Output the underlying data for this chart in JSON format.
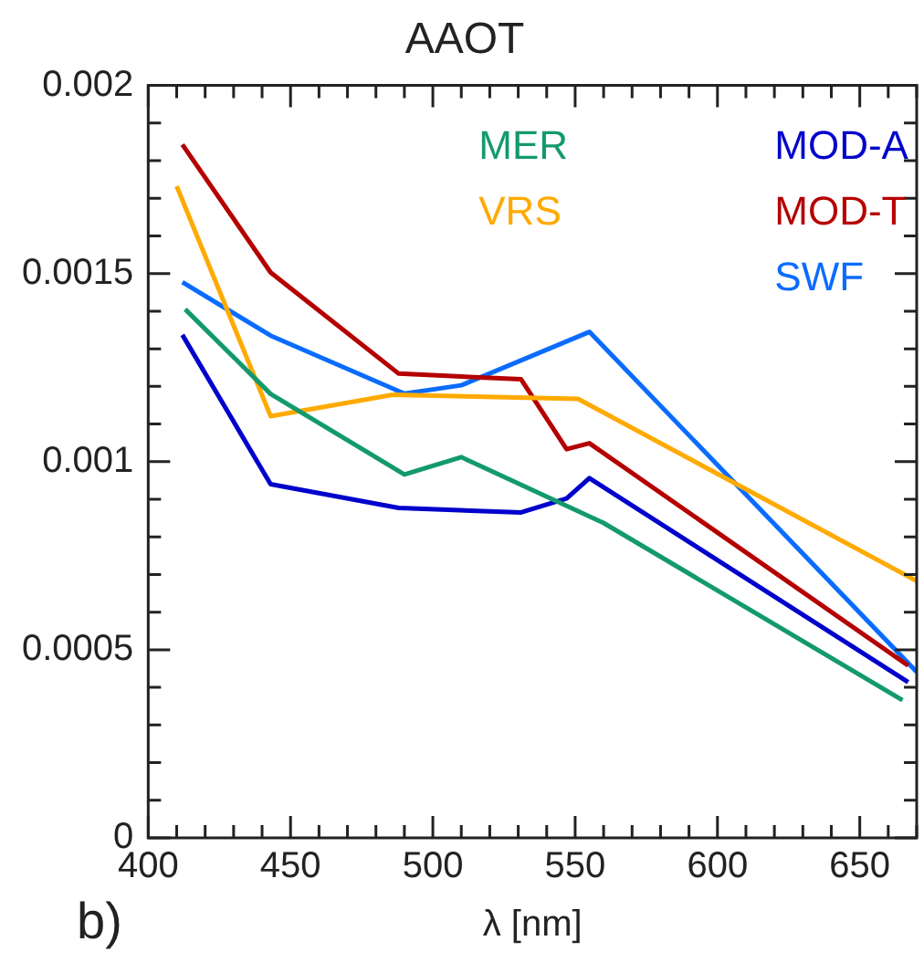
{
  "chart_data": {
    "type": "line",
    "title": "AAOT",
    "xlabel": "λ [nm]",
    "annotations": [
      "b)"
    ],
    "legend": "top right",
    "grid": false,
    "marker": "none",
    "line_style": "solid",
    "xlim": [
      400,
      670
    ],
    "ylim": [
      0,
      0.002
    ],
    "xticks": [
      400,
      {
        "value": 410,
        "label": null
      },
      {
        "value": 420,
        "label": null
      },
      {
        "value": 430,
        "label": null
      },
      {
        "value": 440,
        "label": null
      },
      450,
      {
        "value": 460,
        "label": null
      },
      {
        "value": 470,
        "label": null
      },
      {
        "value": 480,
        "label": null
      },
      {
        "value": 490,
        "label": null
      },
      500,
      {
        "value": 510,
        "label": null
      },
      {
        "value": 520,
        "label": null
      },
      {
        "value": 530,
        "label": null
      },
      {
        "value": 540,
        "label": null
      },
      550,
      {
        "value": 560,
        "label": null
      },
      {
        "value": 570,
        "label": null
      },
      {
        "value": 580,
        "label": null
      },
      {
        "value": 590,
        "label": null
      },
      600,
      {
        "value": 610,
        "label": null
      },
      {
        "value": 620,
        "label": null
      },
      {
        "value": 630,
        "label": null
      },
      {
        "value": 640,
        "label": null
      },
      650,
      {
        "value": 660,
        "label": null
      },
      {
        "value": 670,
        "label": null
      }
    ],
    "yticks": [
      0,
      {
        "value": 0.0001,
        "label": null
      },
      {
        "value": 0.0002,
        "label": null
      },
      {
        "value": 0.0003,
        "label": null
      },
      {
        "value": 0.0004,
        "label": null
      },
      0.0005,
      {
        "value": 0.0006,
        "label": null
      },
      {
        "value": 0.0007,
        "label": null
      },
      {
        "value": 0.0008,
        "label": null
      },
      {
        "value": 0.0009,
        "label": null
      },
      0.001,
      {
        "value": 0.0011,
        "label": null
      },
      {
        "value": 0.0012,
        "label": null
      },
      {
        "value": 0.0013,
        "label": null
      },
      {
        "value": 0.0014,
        "label": null
      },
      0.0015,
      {
        "value": 0.0016,
        "label": null
      },
      {
        "value": 0.0017,
        "label": null
      },
      {
        "value": 0.0018,
        "label": null
      },
      {
        "value": 0.0019,
        "label": null
      },
      0.002
    ],
    "series": [
      {
        "name": "MER",
        "color": "#139a6c",
        "x": [
          413,
          443,
          490,
          510,
          560,
          665
        ],
        "values": [
          0.001405,
          0.00118,
          0.000966,
          0.001012,
          0.000837,
          0.000366
        ]
      },
      {
        "name": "VRS",
        "color": "#ffaa00",
        "x": [
          410,
          443,
          486,
          551,
          670
        ],
        "values": [
          0.001732,
          0.001121,
          0.001178,
          0.001167,
          0.000683
        ]
      },
      {
        "name": "MOD-A",
        "color": "#0000cc",
        "x": [
          412,
          443,
          488,
          531,
          547,
          555,
          667
        ],
        "values": [
          0.001337,
          0.00094,
          0.000877,
          0.000865,
          0.000902,
          0.000956,
          0.000414
        ]
      },
      {
        "name": "MOD-T",
        "color": "#b50000",
        "x": [
          412,
          443,
          488,
          531,
          547,
          555,
          667
        ],
        "values": [
          0.001843,
          0.001503,
          0.001234,
          0.001219,
          0.001033,
          0.001049,
          0.000458
        ]
      },
      {
        "name": "SWF",
        "color": "#0a6cff",
        "x": [
          412,
          443,
          490,
          510,
          555,
          670
        ],
        "values": [
          0.001477,
          0.001335,
          0.001181,
          0.001203,
          0.001345,
          0.000441
        ]
      }
    ]
  }
}
